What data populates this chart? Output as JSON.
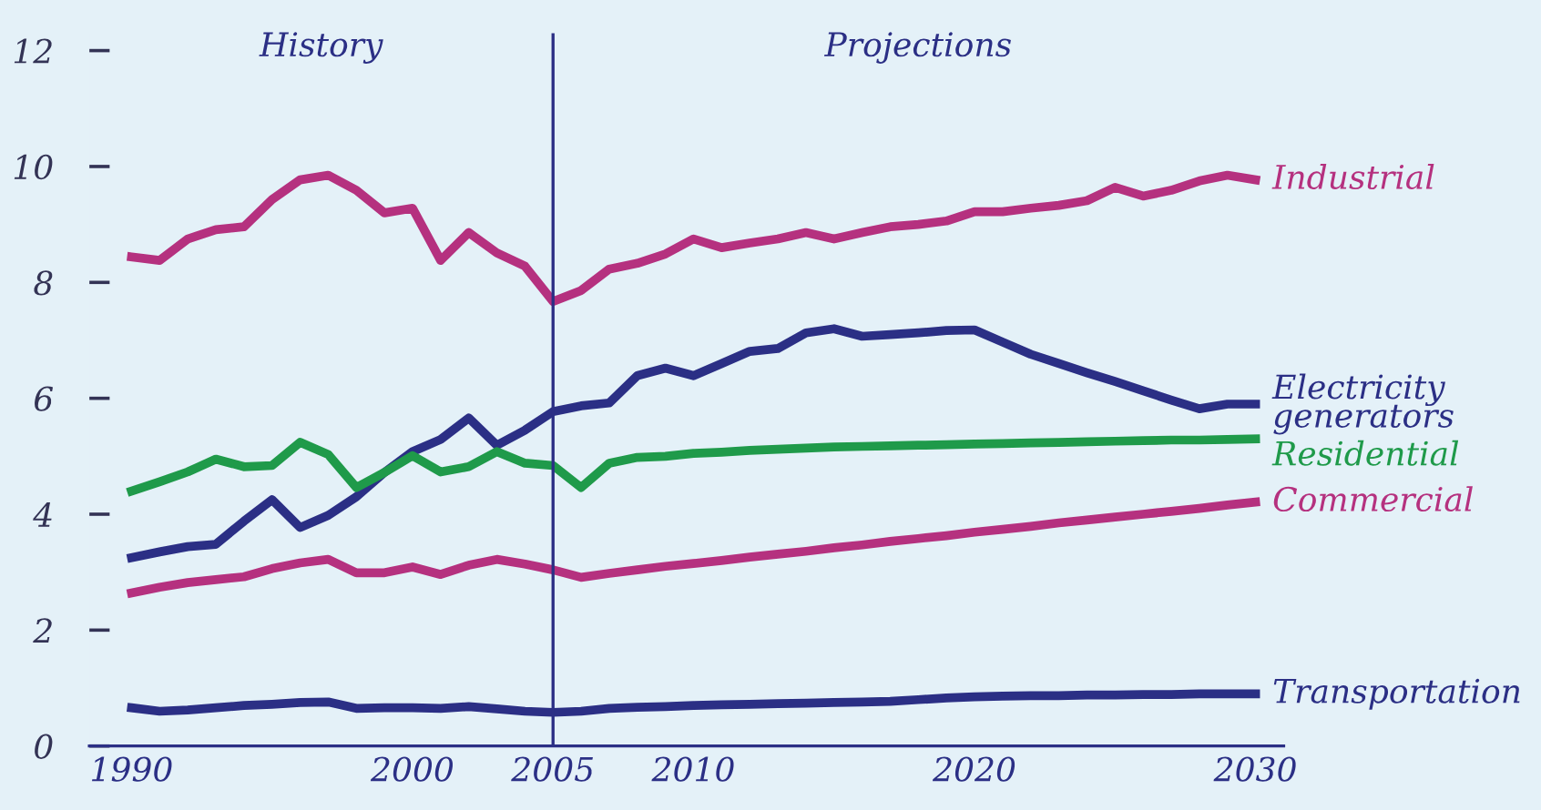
{
  "chart_data": {
    "type": "line",
    "x": [
      1990,
      1991,
      1992,
      1993,
      1994,
      1995,
      1996,
      1997,
      1998,
      1999,
      2000,
      2001,
      2002,
      2003,
      2004,
      2005,
      2006,
      2007,
      2008,
      2009,
      2010,
      2011,
      2012,
      2013,
      2014,
      2015,
      2016,
      2017,
      2018,
      2019,
      2020,
      2021,
      2022,
      2023,
      2024,
      2025,
      2026,
      2027,
      2028,
      2029,
      2030
    ],
    "series": [
      {
        "name": "Industrial",
        "color": "#b5317f",
        "values": [
          8.44,
          8.38,
          8.75,
          8.91,
          8.96,
          9.43,
          9.77,
          9.85,
          9.59,
          9.2,
          9.28,
          8.38,
          8.86,
          8.51,
          8.28,
          7.67,
          7.86,
          8.23,
          8.33,
          8.49,
          8.75,
          8.6,
          8.68,
          8.75,
          8.86,
          8.75,
          8.86,
          8.96,
          9.0,
          9.06,
          9.22,
          9.22,
          9.28,
          9.33,
          9.41,
          9.64,
          9.49,
          9.59,
          9.75,
          9.85,
          9.77
        ]
      },
      {
        "name": "Electricity\ngenerators",
        "color": "#2b2f85",
        "values": [
          3.25,
          3.35,
          3.44,
          3.48,
          3.88,
          4.25,
          3.77,
          3.98,
          4.3,
          4.72,
          5.08,
          5.29,
          5.66,
          5.19,
          5.45,
          5.77,
          5.87,
          5.92,
          6.39,
          6.52,
          6.39,
          6.6,
          6.81,
          6.86,
          7.13,
          7.2,
          7.07,
          7.1,
          7.13,
          7.17,
          7.18,
          6.97,
          6.76,
          6.6,
          6.44,
          6.29,
          6.13,
          5.97,
          5.82,
          5.9,
          5.9
        ]
      },
      {
        "name": "Residential",
        "color": "#1f9a4a",
        "values": [
          4.4,
          4.56,
          4.73,
          4.95,
          4.82,
          4.84,
          5.24,
          5.03,
          4.46,
          4.72,
          5.01,
          4.73,
          4.82,
          5.08,
          4.88,
          4.84,
          4.46,
          4.88,
          4.98,
          5.0,
          5.05,
          5.07,
          5.1,
          5.12,
          5.14,
          5.16,
          5.17,
          5.18,
          5.19,
          5.2,
          5.21,
          5.22,
          5.23,
          5.24,
          5.25,
          5.26,
          5.27,
          5.28,
          5.28,
          5.29,
          5.3
        ]
      },
      {
        "name": "Commercial",
        "color": "#b5317f",
        "values": [
          2.64,
          2.74,
          2.82,
          2.87,
          2.92,
          3.06,
          3.16,
          3.22,
          2.99,
          2.99,
          3.09,
          2.96,
          3.12,
          3.22,
          3.14,
          3.04,
          2.91,
          2.98,
          3.04,
          3.1,
          3.15,
          3.2,
          3.26,
          3.31,
          3.36,
          3.42,
          3.47,
          3.53,
          3.58,
          3.63,
          3.69,
          3.74,
          3.79,
          3.85,
          3.9,
          3.95,
          4.0,
          4.05,
          4.1,
          4.16,
          4.21
        ]
      },
      {
        "name": "Transportation",
        "color": "#2b2f85",
        "values": [
          0.66,
          0.6,
          0.62,
          0.66,
          0.7,
          0.72,
          0.75,
          0.76,
          0.65,
          0.66,
          0.66,
          0.65,
          0.68,
          0.64,
          0.6,
          0.58,
          0.6,
          0.65,
          0.67,
          0.68,
          0.7,
          0.71,
          0.72,
          0.73,
          0.74,
          0.75,
          0.76,
          0.77,
          0.8,
          0.83,
          0.85,
          0.86,
          0.87,
          0.87,
          0.88,
          0.88,
          0.89,
          0.89,
          0.9,
          0.9,
          0.9
        ]
      }
    ],
    "xlim": [
      1988.5,
      2031
    ],
    "ylim": [
      0,
      12.3
    ],
    "xticks": [
      1990,
      2000,
      2005,
      2010,
      2020,
      2030
    ],
    "yticks": [
      0,
      2,
      4,
      6,
      8,
      10,
      12
    ],
    "ref_lines": [
      {
        "axis": "x",
        "value": 2005,
        "color": "#2b2f85"
      }
    ],
    "annotations": [
      "History",
      "Projections"
    ],
    "grid": false,
    "legend": false,
    "marker": "none",
    "line_style": "solid"
  }
}
